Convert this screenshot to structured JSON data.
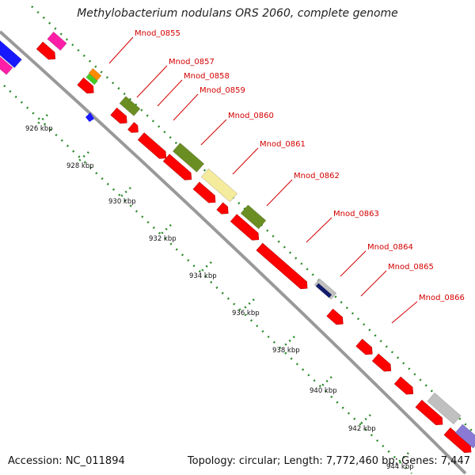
{
  "header": {
    "title": "Methylobacterium nodulans ORS 2060, complete genome"
  },
  "footer": {
    "accession": "Accession: NC_011894",
    "summary": "Topology: circular; Length: 7,772,460 bp; Genes: 7,447"
  },
  "colors": {
    "background": "#ffffff",
    "backbone": "#999999",
    "cds": "#ff0000",
    "label": "#d40000",
    "tick": "#2a8a2a",
    "blast_olive": "#6b8e23",
    "blast_yellow": "#f5eb9c",
    "blast_navy": "#101a6e",
    "blast_grey": "#c0c0c0",
    "blast_magenta": "#ff1ea8",
    "blast_orange": "#ff8c00",
    "blast_green": "#44cc22",
    "blast_blue": "#1818ff",
    "blast_purple": "#8a7ad6"
  },
  "ticks": [
    "926 kbp",
    "928 kbp",
    "930 kbp",
    "932 kbp",
    "934 kbp",
    "936 kbp",
    "938 kbp",
    "940 kbp",
    "942 kbp",
    "944 kbp"
  ],
  "gene_labels": [
    "Mnod_0855",
    "Mnod_0857",
    "Mnod_0858",
    "Mnod_0859",
    "Mnod_0860",
    "Mnod_0861",
    "Mnod_0862",
    "Mnod_0863",
    "Mnod_0864",
    "Mnod_0865",
    "Mnod_0866"
  ]
}
